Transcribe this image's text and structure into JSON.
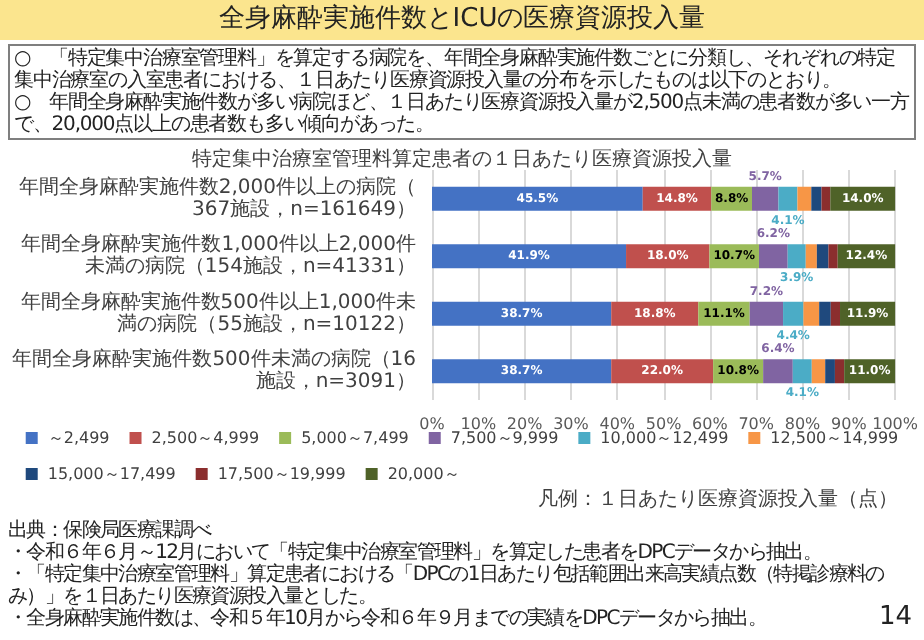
{
  "chart_data": {
    "type": "bar",
    "orientation": "horizontal",
    "stacked": true,
    "title": "全身麻酔実施件数とICUの医療資源投入量",
    "subtitle": "特定集中治療室管理料算定患者の１日あたり医療資源投入量",
    "categories": [
      "年間全身麻酔実施件数2,000件以上の病院（367施設，n=161649）",
      "年間全身麻酔実施件数1,000件以上2,000件未満の病院（154施設，n=41331）",
      "年間全身麻酔実施件数500件以上1,000件未満の病院（55施設，n=10122）",
      "年間全身麻酔実施件数500件未満の病院（16施設，n=3091）"
    ],
    "series": [
      {
        "name": "～2,499",
        "color": "#4472c4",
        "values": [
          45.5,
          41.9,
          38.7,
          38.7
        ],
        "value_labels": [
          "45.5%",
          "41.9%",
          "38.7%",
          "38.7%"
        ]
      },
      {
        "name": "2,500～4,999",
        "color": "#c0504d",
        "values": [
          14.8,
          18.0,
          18.8,
          22.0
        ],
        "value_labels": [
          "14.8%",
          "18.0%",
          "18.8%",
          "22.0%"
        ]
      },
      {
        "name": "5,000～7,499",
        "color": "#9bbb59",
        "values": [
          8.8,
          10.7,
          11.1,
          10.8
        ],
        "value_labels": [
          "8.8%",
          "10.7%",
          "11.1%",
          "10.8%"
        ]
      },
      {
        "name": "7,500～9,999",
        "color": "#8064a2",
        "values": [
          5.7,
          6.2,
          7.2,
          6.4
        ],
        "value_labels": [
          "5.7%",
          "6.2%",
          "7.2%",
          "6.4%"
        ]
      },
      {
        "name": "10,000～12,499",
        "color": "#4bacc6",
        "values": [
          4.1,
          3.9,
          4.4,
          4.1
        ],
        "value_labels": [
          "4.1%",
          "3.9%",
          "4.4%",
          "4.1%"
        ]
      },
      {
        "name": "12,500～14,999",
        "color": "#f79646",
        "values": [
          3.0,
          2.4,
          3.4,
          2.9
        ],
        "value_labels": [
          null,
          null,
          null,
          null
        ]
      },
      {
        "name": "15,000～17,499",
        "color": "#1f497d",
        "values": [
          2.2,
          2.5,
          2.5,
          2.1
        ],
        "value_labels": [
          null,
          null,
          null,
          null
        ]
      },
      {
        "name": "17,500～19,999",
        "color": "#8b2e2e",
        "values": [
          1.9,
          2.0,
          2.0,
          2.0
        ],
        "value_labels": [
          null,
          null,
          null,
          null
        ]
      },
      {
        "name": "20,000～",
        "color": "#4f6228",
        "values": [
          14.0,
          12.4,
          11.9,
          11.0
        ],
        "value_labels": [
          "14.0%",
          "12.4%",
          "11.9%",
          "11.0%"
        ]
      }
    ],
    "xlim": [
      0,
      100
    ],
    "xticks": [
      {
        "value": 0,
        "label": "0%"
      },
      {
        "value": 10,
        "label": "10%"
      },
      {
        "value": 20,
        "label": "20%"
      },
      {
        "value": 30,
        "label": "30%"
      },
      {
        "value": 40,
        "label": "40%"
      },
      {
        "value": 50,
        "label": "50%"
      },
      {
        "value": 60,
        "label": "60%"
      },
      {
        "value": 70,
        "label": "70%"
      },
      {
        "value": 80,
        "label": "80%"
      },
      {
        "value": 90,
        "label": "90%"
      },
      {
        "value": 100,
        "label": "100%"
      }
    ],
    "grid": "x",
    "legend": "bottom",
    "legend_title": "凡例：１日あたり医療資源投入量（点）",
    "annotations": [
      "○　「特定集中治療室管理料」を算定する病院を、年間全身麻酔実施件数ごとに分類し、それぞれの特定集中治療室の入室患者における、１日あたり医療資源投入量の分布を示したものは以下のとおり。",
      "○　年間全身麻酔実施件数が多い病院ほど、１日あたり医療資源投入量が2,500点未満の患者数が多い一方で、20,000点以上の患者数も多い傾向があった。",
      "出典：保険局医療課調べ",
      "・令和６年６月～12月において「特定集中治療室管理料」を算定した患者をDPCデータから抽出。",
      "・「特定集中治療室管理料」算定患者における「DPCの1日あたり包括範囲出来高実績点数（特掲診療料のみ）」を１日あたり医療資源投入量とした。",
      "・全身麻酔実施件数は、令和５年10月から令和６年９月までの実績をDPCデータから抽出。",
      "14"
    ]
  }
}
